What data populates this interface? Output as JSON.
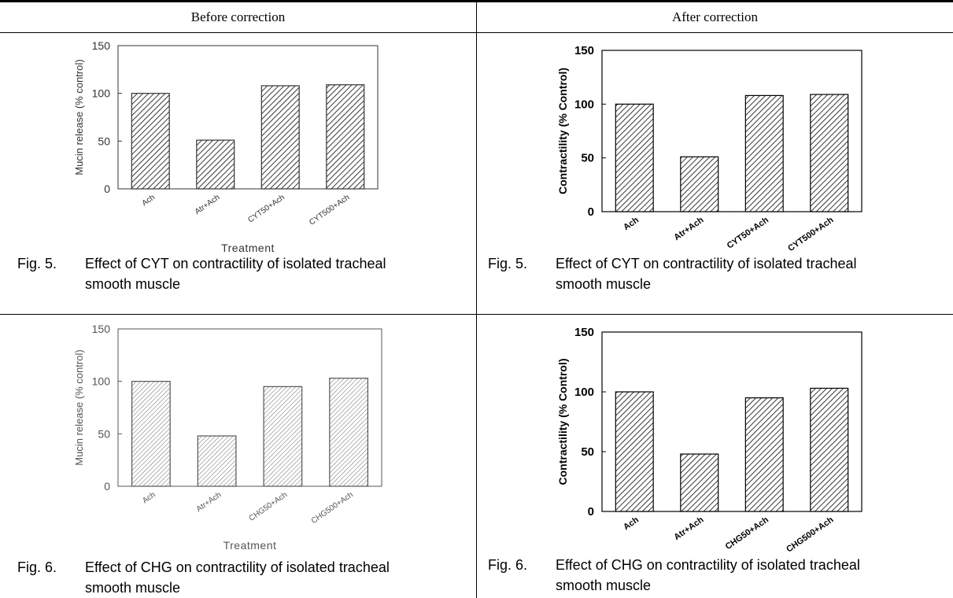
{
  "table": {
    "headers": {
      "before": "Before correction",
      "after": "After correction"
    }
  },
  "panels": {
    "before_cyt": {
      "caption_num": "Fig. 5.",
      "caption_line1": "Effect of CYT on contractility of isolated tracheal",
      "caption_line2": "smooth muscle"
    },
    "after_cyt": {
      "caption_num": "Fig. 5.",
      "caption_line1": "Effect of CYT on contractility of isolated tracheal",
      "caption_line2": "smooth muscle"
    },
    "before_chg": {
      "caption_num": "Fig. 6.",
      "caption_line1": "Effect of CHG on contractility of isolated tracheal",
      "caption_line2": "smooth muscle"
    },
    "after_chg": {
      "caption_num": "Fig. 6.",
      "caption_line1": "Effect of CHG on contractility of isolated tracheal",
      "caption_line2": "smooth muscle"
    }
  },
  "chart_data": [
    {
      "id": "before_cyt",
      "type": "bar",
      "categories": [
        "Ach",
        "Atr+Ach",
        "CYT50+Ach",
        "CYT500+Ach"
      ],
      "values": [
        100,
        51,
        108,
        109
      ],
      "ylabel": "Mucin release (% control)",
      "xlabel": "Treatment",
      "ylim": [
        0,
        150
      ],
      "yticks": [
        "0",
        "50",
        "100",
        "150"
      ],
      "bar_pattern": "hatch-bold"
    },
    {
      "id": "after_cyt",
      "type": "bar",
      "categories": [
        "Ach",
        "Atr+Ach",
        "CYT50+Ach",
        "CYT500+Ach"
      ],
      "values": [
        100,
        51,
        108,
        109
      ],
      "ylabel": "Contractility (% Control)",
      "xlabel": "",
      "ylim": [
        0,
        150
      ],
      "yticks": [
        "0",
        "50",
        "100",
        "150"
      ],
      "bar_pattern": "hatch-bold"
    },
    {
      "id": "before_chg",
      "type": "bar",
      "categories": [
        "Ach",
        "Atr+Ach",
        "CHG50+Ach",
        "CHG500+Ach"
      ],
      "values": [
        100,
        48,
        95,
        103
      ],
      "ylabel": "Mucin release (% control)",
      "xlabel": "Treatment",
      "ylim": [
        0,
        150
      ],
      "yticks": [
        "0",
        "50",
        "100",
        "150"
      ],
      "bar_pattern": "hatch-light"
    },
    {
      "id": "after_chg",
      "type": "bar",
      "categories": [
        "Ach",
        "Atr+Ach",
        "CHG50+Ach",
        "CHG500+Ach"
      ],
      "values": [
        100,
        48,
        95,
        103
      ],
      "ylabel": "Contractility (% Control)",
      "xlabel": "",
      "ylim": [
        0,
        150
      ],
      "yticks": [
        "0",
        "50",
        "100",
        "150"
      ],
      "bar_pattern": "hatch-bold"
    }
  ]
}
